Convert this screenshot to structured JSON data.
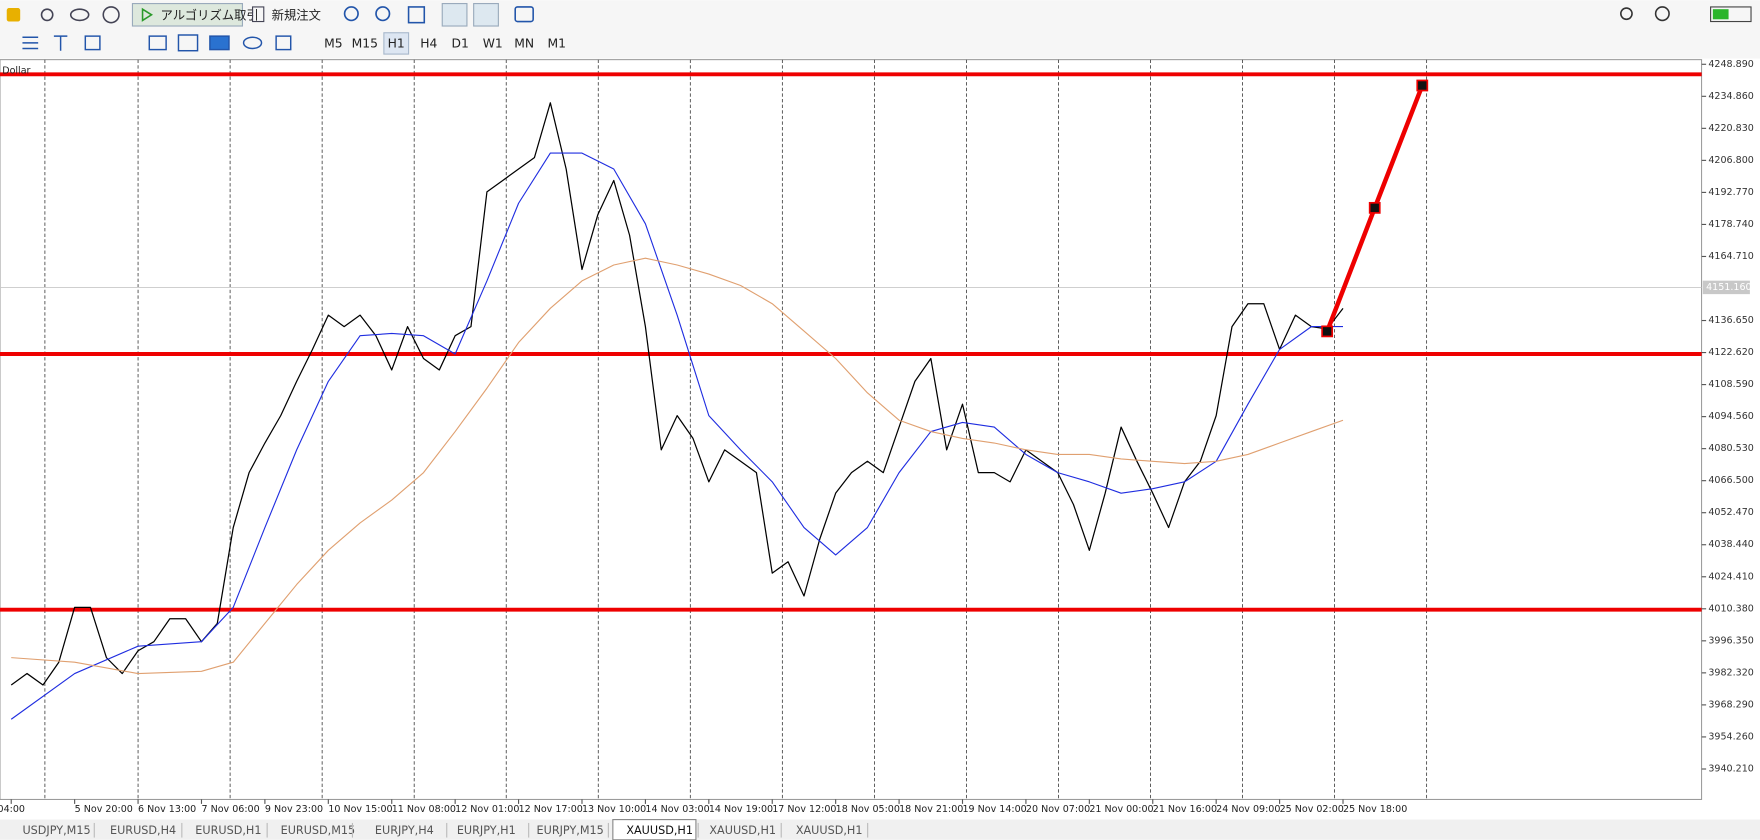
{
  "toolbar": {
    "algo_trading": "アルゴリズム取引",
    "new_order": "新規注文",
    "timeframes": [
      "M5",
      "M15",
      "H1",
      "H4",
      "D1",
      "W1",
      "MN",
      "M1"
    ]
  },
  "tabs": [
    "USDJPY,M15",
    "EURUSD,H4",
    "EURUSD,H1",
    "EURUSD,M15",
    "EURJPY,H4",
    "EURJPY,H1",
    "EURJPY,M15",
    "XAUUSD,H1",
    "XAUUSD,H1",
    "XAUUSD,H1"
  ],
  "chart_data": {
    "type": "line",
    "label": "Dollar",
    "categories": [
      "04:00",
      null,
      null,
      null,
      "5 Nov 20:00",
      null,
      null,
      null,
      "6 Nov 13:00",
      null,
      null,
      null,
      "7 Nov 06:00",
      null,
      null,
      null,
      "9 Nov 23:00",
      null,
      null,
      null,
      "10 Nov 15:00",
      null,
      null,
      null,
      "11 Nov 08:00",
      null,
      null,
      null,
      "12 Nov 01:00",
      null,
      null,
      null,
      "12 Nov 17:00",
      null,
      null,
      null,
      "13 Nov 10:00",
      null,
      null,
      null,
      "14 Nov 03:00",
      null,
      null,
      null,
      "14 Nov 19:00",
      null,
      null,
      null,
      "17 Nov 12:00",
      null,
      null,
      null,
      "18 Nov 05:00",
      null,
      null,
      null,
      "18 Nov 21:00",
      null,
      null,
      null,
      "19 Nov 14:00",
      null,
      null,
      null,
      "20 Nov 07:00",
      null,
      null,
      null,
      "21 Nov 00:00",
      null,
      null,
      null,
      "21 Nov 16:00",
      null,
      null,
      null,
      "24 Nov 09:00",
      null,
      null,
      null,
      "25 Nov 02:00",
      null,
      null,
      null,
      "25 Nov 18:00",
      null,
      null,
      null,
      null,
      null
    ],
    "series": [
      {
        "color": "#000000",
        "values": [
          3977,
          3982,
          3977,
          3987,
          4011,
          4011,
          3989,
          3982,
          3992,
          3996,
          4006,
          4006,
          3996,
          4004,
          4046,
          4070,
          4083,
          4095,
          4110,
          4124,
          4139,
          4134,
          4139,
          4130,
          4115,
          4134,
          4120,
          4115,
          4130,
          4134,
          4193,
          4198,
          4203,
          4208,
          4232,
          4203,
          4159,
          4183,
          4198,
          4174,
          4134,
          4080,
          4095,
          4085,
          4066,
          4080,
          4075,
          4070,
          4026,
          4031,
          4016,
          4041,
          4061,
          4070,
          4075,
          4070,
          4090,
          4110,
          4120,
          4080,
          4100,
          4070,
          4070,
          4066,
          4080,
          4075,
          4070,
          4056,
          4036,
          4061,
          4090,
          4075,
          4061,
          4046,
          4066,
          4075,
          4095,
          4134,
          4144,
          4144,
          4124,
          4139,
          4134,
          4133,
          4142,
          null,
          null,
          null,
          null,
          null
        ]
      },
      {
        "color": "#1f2de0",
        "x": [
          0,
          4,
          8,
          12,
          14,
          16,
          18,
          20,
          22,
          24,
          26,
          28,
          30,
          32,
          34,
          36,
          38,
          40,
          42,
          44,
          46,
          48,
          50,
          52,
          54,
          56,
          58,
          60,
          62,
          64,
          66,
          68,
          70,
          72,
          74,
          76,
          78,
          80,
          82,
          84
        ],
        "values": [
          3962,
          3982,
          3994,
          3996,
          4011,
          4046,
          4080,
          4110,
          4130,
          4131,
          4130,
          4122,
          4154,
          4188,
          4210,
          4210,
          4203,
          4179,
          4139,
          4095,
          4080,
          4066,
          4046,
          4034,
          4046,
          4070,
          4088,
          4092,
          4090,
          4078,
          4070,
          4066,
          4061,
          4063,
          4066,
          4075,
          4100,
          4124,
          4134,
          4134
        ]
      },
      {
        "color": "#e0a070",
        "x": [
          0,
          4,
          8,
          12,
          14,
          16,
          18,
          20,
          22,
          24,
          26,
          28,
          30,
          32,
          34,
          36,
          38,
          40,
          42,
          44,
          46,
          48,
          50,
          52,
          54,
          56,
          58,
          60,
          62,
          64,
          66,
          68,
          70,
          72,
          74,
          76,
          78,
          80,
          82,
          84
        ],
        "values": [
          3989,
          3987,
          3982,
          3983,
          3987,
          4004,
          4021,
          4036,
          4048,
          4058,
          4070,
          4088,
          4107,
          4127,
          4142,
          4154,
          4161,
          4164,
          4161,
          4157,
          4152,
          4144,
          4132,
          4120,
          4105,
          4093,
          4088,
          4085,
          4083,
          4080,
          4078,
          4078,
          4076,
          4075,
          4074,
          4075,
          4078,
          4083,
          4088,
          4093
        ]
      },
      {
        "color": "#ee0000",
        "x": [
          83,
          86,
          89
        ],
        "values": [
          4131.9,
          4186.0,
          4239.6
        ],
        "markers": true
      }
    ],
    "hlines": {
      "color": "#ee0000",
      "values": [
        4244.5,
        4122.0,
        4010.0
      ]
    },
    "last_price": {
      "value": 4151.16,
      "label": "4151.160"
    },
    "ylim": [
      3926.9,
      4250.9
    ],
    "yticks": [
      {
        "value": 4248.89,
        "label": "4248.890"
      },
      {
        "value": 4234.86,
        "label": "4234.860"
      },
      {
        "value": 4220.83,
        "label": "4220.830"
      },
      {
        "value": 4206.8,
        "label": "4206.800"
      },
      {
        "value": 4192.77,
        "label": "4192.770"
      },
      {
        "value": 4178.74,
        "label": "4178.740"
      },
      {
        "value": 4164.71,
        "label": "4164.710"
      },
      {
        "value": 4136.65,
        "label": "4136.650"
      },
      {
        "value": 4122.62,
        "label": "4122.620"
      },
      {
        "value": 4108.59,
        "label": "4108.590"
      },
      {
        "value": 4094.56,
        "label": "4094.560"
      },
      {
        "value": 4080.53,
        "label": "4080.530"
      },
      {
        "value": 4066.5,
        "label": "4066.500"
      },
      {
        "value": 4052.47,
        "label": "4052.470"
      },
      {
        "value": 4038.44,
        "label": "4038.440"
      },
      {
        "value": 4024.41,
        "label": "4024.410"
      },
      {
        "value": 4010.38,
        "label": "4010.380"
      },
      {
        "value": 3996.35,
        "label": "3996.350"
      },
      {
        "value": 3982.32,
        "label": "3982.320"
      },
      {
        "value": 3968.29,
        "label": "3968.290"
      },
      {
        "value": 3954.26,
        "label": "3954.260"
      },
      {
        "value": 3940.21,
        "label": "3940.210"
      }
    ]
  }
}
